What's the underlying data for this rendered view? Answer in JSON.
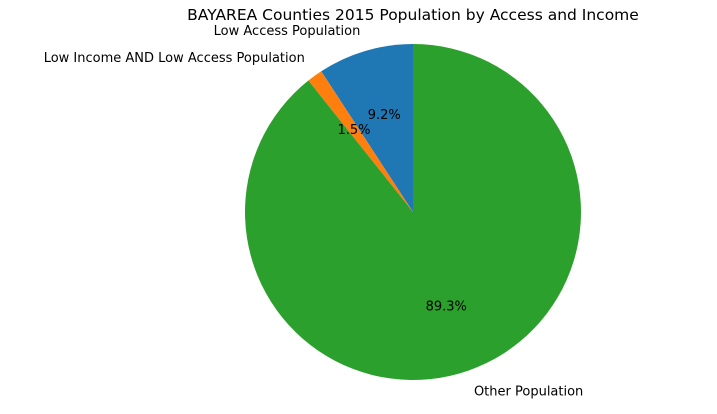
{
  "chart_data": {
    "type": "pie",
    "title": "BAYAREA Counties 2015 Population by Access and Income",
    "start_angle_deg": 90,
    "direction": "counterclockwise",
    "slices": [
      {
        "label": "Low Access Population",
        "value": 9.2,
        "pct_label": "9.2%",
        "color": "#1f77b4"
      },
      {
        "label": "Low Income AND Low Access Population",
        "value": 1.5,
        "pct_label": "1.5%",
        "color": "#ff7f0e"
      },
      {
        "label": "Other Population",
        "value": 89.3,
        "pct_label": "89.3%",
        "color": "#2ca02c"
      }
    ]
  }
}
